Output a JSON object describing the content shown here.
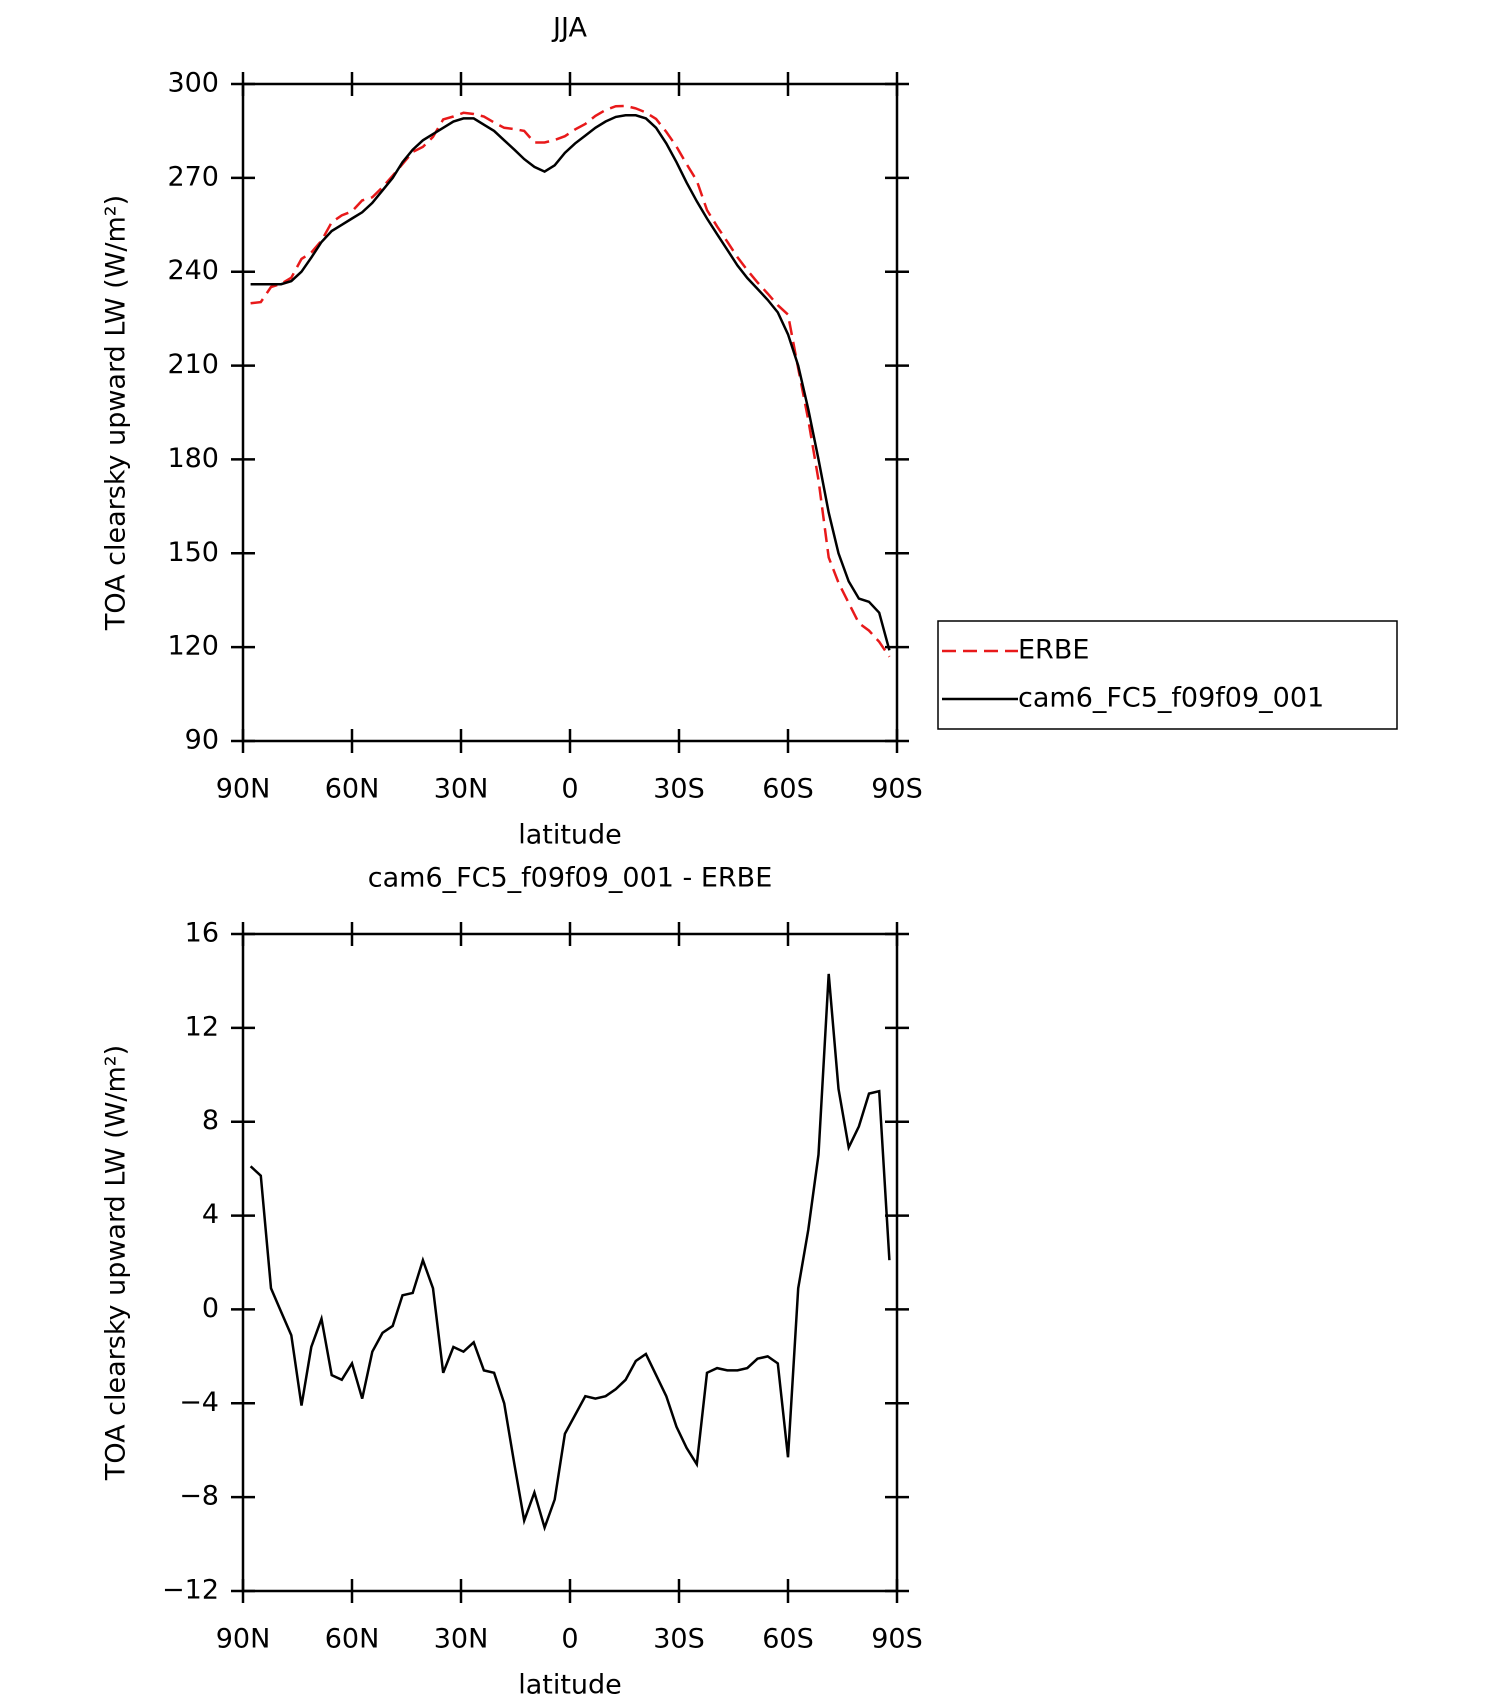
{
  "chart_data": [
    {
      "type": "line",
      "title": "JJA",
      "xlabel": "latitude",
      "ylabel": "TOA clearsky upward LW (W/m²)",
      "x": [
        87.9,
        85.1,
        82.3,
        79.5,
        76.7,
        73.9,
        71.2,
        68.4,
        65.6,
        62.8,
        60.0,
        57.2,
        54.4,
        51.6,
        48.8,
        46.1,
        43.3,
        40.5,
        37.7,
        34.9,
        32.1,
        29.3,
        26.5,
        23.7,
        20.9,
        18.1,
        15.3,
        12.6,
        9.8,
        7.0,
        4.2,
        1.4,
        -1.4,
        -4.2,
        -7.0,
        -9.8,
        -12.6,
        -15.3,
        -18.1,
        -20.9,
        -23.7,
        -26.5,
        -29.3,
        -32.1,
        -34.9,
        -37.7,
        -40.5,
        -43.3,
        -46.1,
        -48.8,
        -51.6,
        -54.4,
        -57.2,
        -60.0,
        -62.8,
        -65.6,
        -68.4,
        -71.2,
        -73.9,
        -76.7,
        -79.5,
        -82.3,
        -85.1,
        -87.9
      ],
      "series": [
        {
          "name": "ERBE",
          "color": "#e8191a",
          "dash": true,
          "values": [
            229.9,
            230.3,
            235.1,
            236.1,
            238.1,
            244.1,
            246.1,
            249.9,
            255.8,
            258.0,
            259.3,
            262.8,
            263.8,
            267.0,
            270.7,
            274.4,
            278.3,
            279.9,
            283.1,
            288.7,
            289.6,
            290.8,
            290.4,
            289.6,
            287.7,
            286.0,
            285.6,
            285.0,
            281.3,
            281.3,
            282.1,
            283.3,
            285.5,
            287.2,
            289.8,
            291.7,
            292.9,
            293.0,
            292.2,
            290.9,
            288.8,
            284.7,
            280.0,
            274.4,
            269.1,
            259.7,
            254.5,
            249.6,
            244.6,
            240.5,
            236.6,
            233.0,
            229.3,
            226.3,
            209.1,
            192.6,
            173.4,
            148.7,
            140.6,
            134.1,
            127.7,
            125.3,
            121.7,
            116.9
          ]
        },
        {
          "name": "cam6_FC5_f09f09_001",
          "color": "#000000",
          "dash": false,
          "values": [
            236,
            236,
            236,
            236,
            237,
            240,
            244.5,
            249.5,
            253,
            255,
            257,
            259,
            262,
            266,
            270,
            275,
            279,
            282,
            284,
            286,
            288,
            289,
            289,
            287,
            285,
            282,
            279,
            276,
            273.5,
            272,
            274,
            278,
            281,
            283.5,
            286,
            288,
            289.5,
            290,
            290,
            289,
            286,
            281,
            275,
            268.5,
            262.5,
            257,
            252,
            247,
            242,
            238,
            234.5,
            231,
            227,
            220,
            210,
            196,
            180,
            163,
            150,
            141,
            135.5,
            134.5,
            131,
            119
          ]
        }
      ],
      "xlim": [
        90,
        -90
      ],
      "xticks": [
        {
          "value": 90,
          "label": "90N"
        },
        {
          "value": 60,
          "label": "60N"
        },
        {
          "value": 30,
          "label": "30N"
        },
        0,
        {
          "value": -30,
          "label": "30S"
        },
        {
          "value": -60,
          "label": "60S"
        },
        {
          "value": -90,
          "label": "90S"
        }
      ],
      "ylim": [
        90,
        300
      ],
      "yticks": [
        90,
        120,
        150,
        180,
        210,
        240,
        270,
        300
      ],
      "legend": "right"
    },
    {
      "type": "line",
      "title": "cam6_FC5_f09f09_001 - ERBE",
      "xlabel": "latitude",
      "ylabel": "TOA clearsky upward LW (W/m²)",
      "x": [
        87.9,
        85.1,
        82.3,
        79.5,
        76.7,
        73.9,
        71.2,
        68.4,
        65.6,
        62.8,
        60.0,
        57.2,
        54.4,
        51.6,
        48.8,
        46.1,
        43.3,
        40.5,
        37.7,
        34.9,
        32.1,
        29.3,
        26.5,
        23.7,
        20.9,
        18.1,
        15.3,
        12.6,
        9.8,
        7.0,
        4.2,
        1.4,
        -1.4,
        -4.2,
        -7.0,
        -9.8,
        -12.6,
        -15.3,
        -18.1,
        -20.9,
        -23.7,
        -26.5,
        -29.3,
        -32.1,
        -34.9,
        -37.7,
        -40.5,
        -43.3,
        -46.1,
        -48.8,
        -51.6,
        -54.4,
        -57.2,
        -60.0,
        -62.8,
        -65.6,
        -68.4,
        -71.2,
        -73.9,
        -76.7,
        -79.5,
        -82.3,
        -85.1,
        -87.9
      ],
      "values": [
        6.1,
        5.7,
        0.9,
        -0.1,
        -1.1,
        -4.1,
        -1.6,
        -0.4,
        -2.8,
        -3.0,
        -2.3,
        -3.8,
        -1.8,
        -1.0,
        -0.7,
        0.6,
        0.7,
        2.1,
        0.9,
        -2.7,
        -1.6,
        -1.8,
        -1.4,
        -2.6,
        -2.7,
        -4.0,
        -6.6,
        -9.0,
        -7.8,
        -9.3,
        -8.1,
        -5.3,
        -4.5,
        -3.7,
        -3.8,
        -3.7,
        -3.4,
        -3.0,
        -2.2,
        -1.9,
        -2.8,
        -3.7,
        -5.0,
        -5.9,
        -6.6,
        -2.7,
        -2.5,
        -2.6,
        -2.6,
        -2.5,
        -2.1,
        -2.0,
        -2.3,
        -6.3,
        0.9,
        3.4,
        6.6,
        14.3,
        9.4,
        6.9,
        7.8,
        9.2,
        9.3,
        2.1
      ],
      "color": "#000000",
      "xlim": [
        90,
        -90
      ],
      "xticks": [
        {
          "value": 90,
          "label": "90N"
        },
        {
          "value": 60,
          "label": "60N"
        },
        {
          "value": 30,
          "label": "30N"
        },
        0,
        {
          "value": -30,
          "label": "30S"
        },
        {
          "value": -60,
          "label": "60S"
        },
        {
          "value": -90,
          "label": "90S"
        }
      ],
      "ylim": [
        -12,
        16
      ],
      "yticks": [
        {
          "value": -12,
          "label": "−12"
        },
        {
          "value": -8,
          "label": "−8"
        },
        {
          "value": -4,
          "label": "−4"
        },
        0,
        4,
        8,
        12,
        16
      ]
    }
  ]
}
